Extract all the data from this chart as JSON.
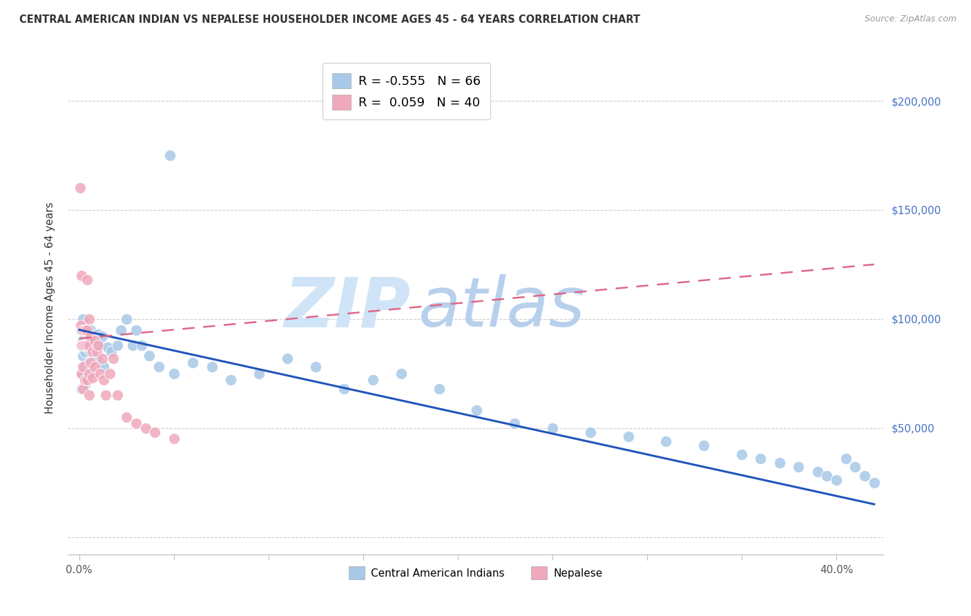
{
  "title": "CENTRAL AMERICAN INDIAN VS NEPALESE HOUSEHOLDER INCOME AGES 45 - 64 YEARS CORRELATION CHART",
  "source": "Source: ZipAtlas.com",
  "ylabel": "Householder Income Ages 45 - 64 years",
  "blue_R": -0.555,
  "blue_N": 66,
  "pink_R": 0.059,
  "pink_N": 40,
  "blue_dot_color": "#A8C8E8",
  "pink_dot_color": "#F0A8BC",
  "blue_line_color": "#2255BB",
  "pink_line_color": "#DD6688",
  "legend_label_blue": "Central American Indians",
  "legend_label_pink": "Nepalese",
  "watermark_color": "#D0E4F7",
  "right_tick_color": "#4472C4",
  "blue_x": [
    0.048,
    0.001,
    0.001,
    0.001,
    0.001,
    0.002,
    0.002,
    0.002,
    0.003,
    0.003,
    0.003,
    0.003,
    0.004,
    0.004,
    0.004,
    0.005,
    0.005,
    0.006,
    0.006,
    0.007,
    0.007,
    0.008,
    0.009,
    0.01,
    0.011,
    0.012,
    0.013,
    0.015,
    0.017,
    0.02,
    0.022,
    0.025,
    0.028,
    0.03,
    0.033,
    0.037,
    0.042,
    0.05,
    0.06,
    0.07,
    0.08,
    0.095,
    0.11,
    0.125,
    0.14,
    0.155,
    0.17,
    0.19,
    0.21,
    0.23,
    0.25,
    0.27,
    0.29,
    0.31,
    0.33,
    0.35,
    0.36,
    0.37,
    0.38,
    0.39,
    0.395,
    0.4,
    0.405,
    0.41,
    0.415,
    0.42
  ],
  "blue_y": [
    175000,
    95000,
    88000,
    75000,
    68000,
    100000,
    90000,
    83000,
    95000,
    85000,
    78000,
    70000,
    93000,
    87000,
    72000,
    92000,
    80000,
    85000,
    95000,
    90000,
    75000,
    88000,
    82000,
    93000,
    88000,
    92000,
    78000,
    87000,
    85000,
    88000,
    95000,
    100000,
    88000,
    95000,
    88000,
    83000,
    78000,
    75000,
    80000,
    78000,
    72000,
    75000,
    82000,
    78000,
    68000,
    72000,
    75000,
    68000,
    58000,
    52000,
    50000,
    48000,
    46000,
    44000,
    42000,
    38000,
    36000,
    34000,
    32000,
    30000,
    28000,
    26000,
    36000,
    32000,
    28000,
    25000
  ],
  "pink_x": [
    0.0005,
    0.0008,
    0.001,
    0.001,
    0.001,
    0.002,
    0.002,
    0.002,
    0.002,
    0.003,
    0.003,
    0.003,
    0.004,
    0.004,
    0.004,
    0.004,
    0.005,
    0.005,
    0.005,
    0.005,
    0.006,
    0.006,
    0.007,
    0.007,
    0.008,
    0.008,
    0.009,
    0.01,
    0.011,
    0.012,
    0.013,
    0.014,
    0.016,
    0.018,
    0.02,
    0.025,
    0.03,
    0.035,
    0.04,
    0.05
  ],
  "pink_y": [
    160000,
    97000,
    120000,
    88000,
    75000,
    95000,
    88000,
    78000,
    68000,
    95000,
    88000,
    72000,
    118000,
    95000,
    88000,
    72000,
    100000,
    88000,
    75000,
    65000,
    92000,
    80000,
    85000,
    73000,
    90000,
    78000,
    85000,
    88000,
    75000,
    82000,
    72000,
    65000,
    75000,
    82000,
    65000,
    55000,
    52000,
    50000,
    48000,
    45000
  ]
}
